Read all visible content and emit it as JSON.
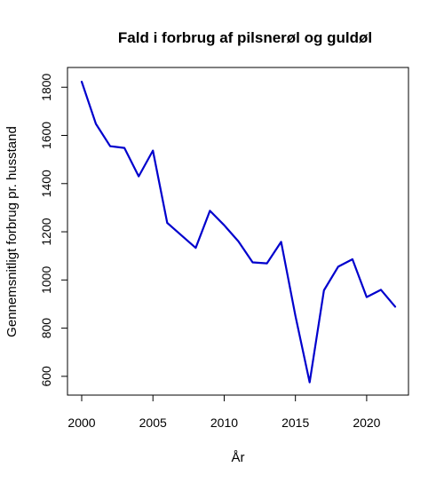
{
  "chart_data": {
    "type": "line",
    "title": "Fald i forbrug af pilsnerøl og guldøl",
    "xlabel": "År",
    "ylabel": "Gennemsnitligt forbrug pr. husstand",
    "x": [
      2000,
      2001,
      2002,
      2003,
      2004,
      2005,
      2006,
      2007,
      2008,
      2009,
      2010,
      2011,
      2012,
      2013,
      2014,
      2015,
      2016,
      2017,
      2018,
      2019,
      2020,
      2021,
      2022
    ],
    "series": [
      {
        "color": "#0000cd",
        "values": [
          1823,
          1648,
          1555,
          1548,
          1430,
          1537,
          1237,
          1185,
          1133,
          1287,
          1227,
          1160,
          1073,
          1069,
          1158,
          851,
          575,
          957,
          1055,
          1086,
          929,
          959,
          889
        ]
      }
    ],
    "xlim": [
      2000,
      2022
    ],
    "ylim": [
      570,
      1823
    ],
    "xticks": [
      2000,
      2005,
      2010,
      2015,
      2020
    ],
    "yticks": [
      600,
      800,
      1000,
      1200,
      1400,
      1600,
      1800
    ],
    "grid": false,
    "legend": "none"
  }
}
